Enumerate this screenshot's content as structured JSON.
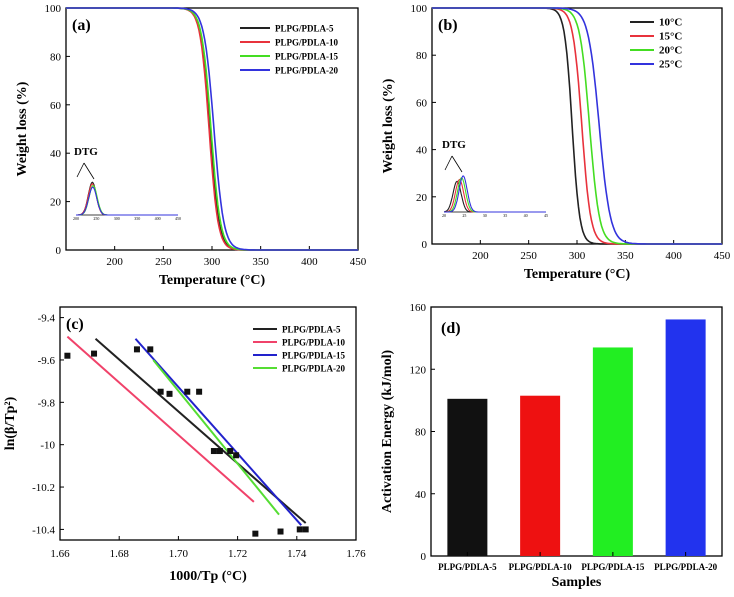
{
  "chart_data": [
    {
      "panel": "(a)",
      "type": "line",
      "xlabel": "Temperature (°C)",
      "ylabel": "Weight loss (%)",
      "xlim": [
        150,
        450
      ],
      "ylim": [
        0,
        100
      ],
      "xticks": [
        200,
        250,
        300,
        350,
        400,
        450
      ],
      "yticks": [
        0,
        20,
        40,
        60,
        80,
        100
      ],
      "legend_position": "top-right",
      "series": [
        {
          "name": "PLPG/PDLA-5",
          "color": "#222222",
          "onset": 253,
          "mid": 298,
          "end": 318
        },
        {
          "name": "PLPG/PDLA-10",
          "color": "#e8323c",
          "onset": 252,
          "mid": 297,
          "end": 317
        },
        {
          "name": "PLPG/PDLA-15",
          "color": "#44dd22",
          "onset": 254,
          "mid": 299,
          "end": 320
        },
        {
          "name": "PLPG/PDLA-20",
          "color": "#3333dd",
          "onset": 256,
          "mid": 302,
          "end": 324
        }
      ],
      "inset": {
        "label": "DTG",
        "ticks": [
          "200",
          "250",
          "300",
          "350",
          "400",
          "450"
        ],
        "peaks": [
          {
            "color": "#222222",
            "center": 240,
            "height": 1.0
          },
          {
            "color": "#e8323c",
            "center": 240,
            "height": 0.95
          },
          {
            "color": "#44dd22",
            "center": 242,
            "height": 0.9
          },
          {
            "color": "#3333dd",
            "center": 241,
            "height": 0.85
          }
        ]
      }
    },
    {
      "panel": "(b)",
      "type": "line",
      "xlabel": "Temperature (°C)",
      "ylabel": "Weight loss (%)",
      "xlim": [
        150,
        450
      ],
      "ylim": [
        0,
        100
      ],
      "xticks": [
        200,
        250,
        300,
        350,
        400,
        450
      ],
      "yticks": [
        0,
        20,
        40,
        60,
        80,
        100
      ],
      "legend_position": "top-right",
      "series": [
        {
          "name": "10°C",
          "color": "#222222",
          "onset": 250,
          "mid": 295,
          "end": 312
        },
        {
          "name": "15°C",
          "color": "#e8323c",
          "onset": 258,
          "mid": 305,
          "end": 325
        },
        {
          "name": "20°C",
          "color": "#44dd22",
          "onset": 262,
          "mid": 313,
          "end": 335
        },
        {
          "name": "25°C",
          "color": "#3333dd",
          "onset": 268,
          "mid": 323,
          "end": 348
        }
      ],
      "inset": {
        "label": "DTG",
        "ticks": [
          "20",
          "25",
          "30",
          "35",
          "40",
          "45"
        ],
        "peaks": [
          {
            "color": "#222222",
            "center": 232,
            "height": 0.85
          },
          {
            "color": "#e8323c",
            "center": 238,
            "height": 0.9
          },
          {
            "color": "#44dd22",
            "center": 243,
            "height": 0.95
          },
          {
            "color": "#3333dd",
            "center": 247,
            "height": 1.0
          }
        ]
      }
    },
    {
      "panel": "(c)",
      "type": "scatter",
      "xlabel": "1000/Tp (°C)",
      "ylabel": "ln(β/Tp²)",
      "xlim": [
        1.66,
        1.76
      ],
      "ylim": [
        -10.45,
        -9.35
      ],
      "xticks": [
        1.66,
        1.68,
        1.7,
        1.72,
        1.74,
        1.76
      ],
      "yticks": [
        -9.4,
        -9.6,
        -9.8,
        -10.0,
        -10.2,
        -10.4
      ],
      "legend_position": "top-right",
      "points": [
        {
          "x": 1.6625,
          "y": -9.58
        },
        {
          "x": 1.6715,
          "y": -9.57
        },
        {
          "x": 1.686,
          "y": -9.55
        },
        {
          "x": 1.6905,
          "y": -9.55
        },
        {
          "x": 1.694,
          "y": -9.75
        },
        {
          "x": 1.697,
          "y": -9.76
        },
        {
          "x": 1.703,
          "y": -9.75
        },
        {
          "x": 1.707,
          "y": -9.75
        },
        {
          "x": 1.712,
          "y": -10.03
        },
        {
          "x": 1.714,
          "y": -10.03
        },
        {
          "x": 1.7175,
          "y": -10.03
        },
        {
          "x": 1.7195,
          "y": -10.05
        },
        {
          "x": 1.726,
          "y": -10.42
        },
        {
          "x": 1.7345,
          "y": -10.41
        },
        {
          "x": 1.741,
          "y": -10.4
        },
        {
          "x": 1.743,
          "y": -10.4
        }
      ],
      "series": [
        {
          "name": "PLPG/PDLA-5",
          "color": "#222222",
          "x": [
            1.672,
            1.743
          ],
          "y": [
            -9.5,
            -10.37
          ]
        },
        {
          "name": "PLPG/PDLA-10",
          "color": "#f0426a",
          "x": [
            1.6625,
            1.7255
          ],
          "y": [
            -9.49,
            -10.27
          ]
        },
        {
          "name": "PLPG/PDLA-15",
          "color": "#2222cc",
          "x": [
            1.6855,
            1.7415
          ],
          "y": [
            -9.5,
            -10.38
          ]
        },
        {
          "name": "PLPG/PDLA-20",
          "color": "#55dd33",
          "x": [
            1.6915,
            1.734
          ],
          "y": [
            -9.6,
            -10.33
          ]
        }
      ]
    },
    {
      "panel": "(d)",
      "type": "bar",
      "xlabel": "Samples",
      "ylabel": "Activation Energy (kJ/mol)",
      "ylim": [
        0,
        160
      ],
      "yticks": [
        0,
        40,
        80,
        120,
        160
      ],
      "categories": [
        "PLPG/PDLA-5",
        "PLPG/PDLA-10",
        "PLPG/PDLA-15",
        "PLPG/PDLA-20"
      ],
      "values": [
        101,
        103,
        134,
        152
      ],
      "colors": [
        "#111111",
        "#ee1111",
        "#22ee22",
        "#2233ee"
      ]
    }
  ]
}
